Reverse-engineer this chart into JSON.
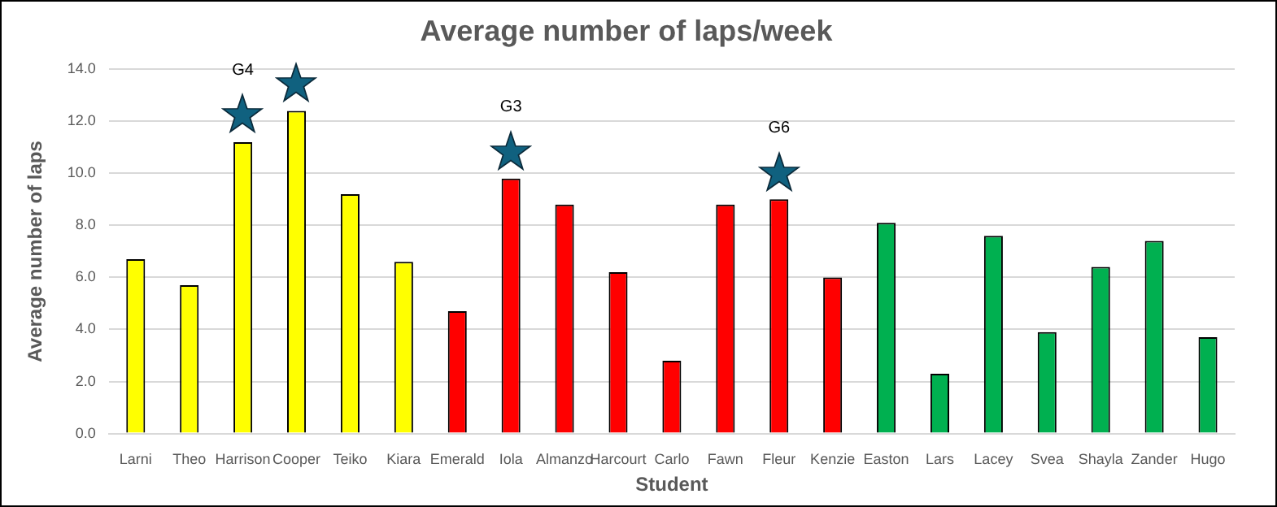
{
  "chart_data": {
    "type": "bar",
    "title": "Average number of laps/week",
    "xlabel": "Student",
    "ylabel": "Average number of laps",
    "categories": [
      "Larni",
      "Theo",
      "Harrison",
      "Cooper",
      "Teiko",
      "Kiara",
      "Emerald",
      "Iola",
      "Almanzo",
      "Harcourt",
      "Carlo",
      "Fawn",
      "Fleur",
      "Kenzie",
      "Easton",
      "Lars",
      "Lacey",
      "Svea",
      "Shayla",
      "Zander",
      "Hugo"
    ],
    "values": [
      6.7,
      5.7,
      11.2,
      12.4,
      9.2,
      6.6,
      4.7,
      9.8,
      8.8,
      6.2,
      2.8,
      8.8,
      9.0,
      6.0,
      8.1,
      2.3,
      7.6,
      3.9,
      6.4,
      7.4,
      3.7
    ],
    "colors": [
      "#ffff00",
      "#ffff00",
      "#ffff00",
      "#ffff00",
      "#ffff00",
      "#ffff00",
      "#ff0000",
      "#ff0000",
      "#ff0000",
      "#ff0000",
      "#ff0000",
      "#ff0000",
      "#ff0000",
      "#ff0000",
      "#00b050",
      "#00b050",
      "#00b050",
      "#00b050",
      "#00b050",
      "#00b050",
      "#00b050"
    ],
    "ylim": [
      0,
      14
    ],
    "yticks": [
      {
        "value": 0,
        "label": "0.0"
      },
      {
        "value": 2,
        "label": "2.0"
      },
      {
        "value": 4,
        "label": "4.0"
      },
      {
        "value": 6,
        "label": "6.0"
      },
      {
        "value": 8,
        "label": "8.0"
      },
      {
        "value": 10,
        "label": "10.0"
      },
      {
        "value": 12,
        "label": "12.0"
      },
      {
        "value": 14,
        "label": "14.0"
      }
    ],
    "grid": "y",
    "legend": false,
    "annotations": [
      "G4",
      "G3",
      "G6"
    ]
  }
}
